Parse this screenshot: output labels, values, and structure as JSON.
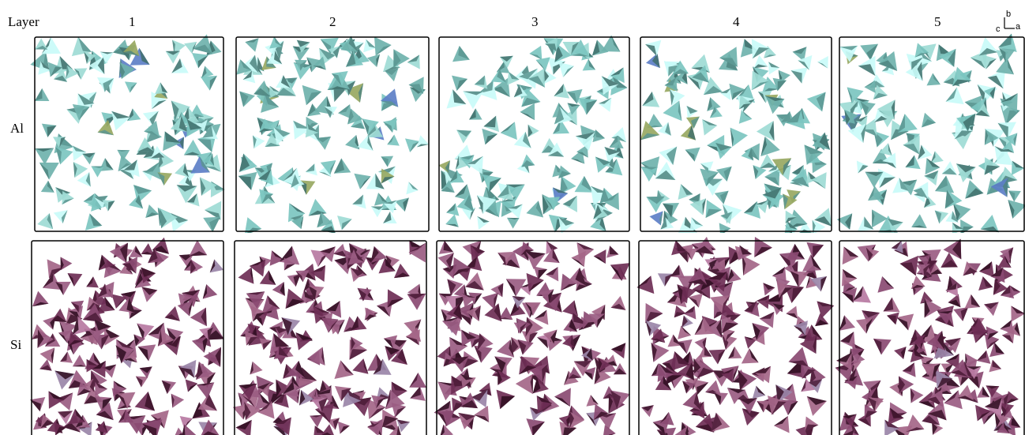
{
  "header": {
    "row_label": "Layer",
    "columns": [
      "1",
      "2",
      "3",
      "4",
      "5"
    ]
  },
  "rows": [
    "Al",
    "Si"
  ],
  "axis_labels": [
    "c",
    "b",
    "a"
  ]
}
